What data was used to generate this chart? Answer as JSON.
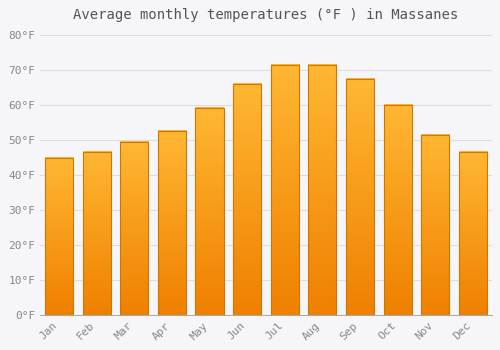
{
  "title": "Average monthly temperatures (°F ) in Massanes",
  "months": [
    "Jan",
    "Feb",
    "Mar",
    "Apr",
    "May",
    "Jun",
    "Jul",
    "Aug",
    "Sep",
    "Oct",
    "Nov",
    "Dec"
  ],
  "values": [
    45,
    46.5,
    49.5,
    52.5,
    59,
    66,
    71.5,
    71.5,
    67.5,
    60,
    51.5,
    46.5
  ],
  "bar_color_top": "#FFB733",
  "bar_color_bottom": "#F08000",
  "bar_edge_color": "#CC7700",
  "background_color": "#F5F5FA",
  "plot_bg_color": "#F5F5FA",
  "grid_color": "#DEDEDE",
  "ylim": [
    0,
    82
  ],
  "yticks": [
    0,
    10,
    20,
    30,
    40,
    50,
    60,
    70,
    80
  ],
  "ytick_labels": [
    "0°F",
    "10°F",
    "20°F",
    "30°F",
    "40°F",
    "50°F",
    "60°F",
    "70°F",
    "80°F"
  ],
  "title_fontsize": 10,
  "tick_fontsize": 8,
  "title_color": "#555555",
  "tick_color": "#888888",
  "font_family": "monospace",
  "bar_width": 0.75
}
